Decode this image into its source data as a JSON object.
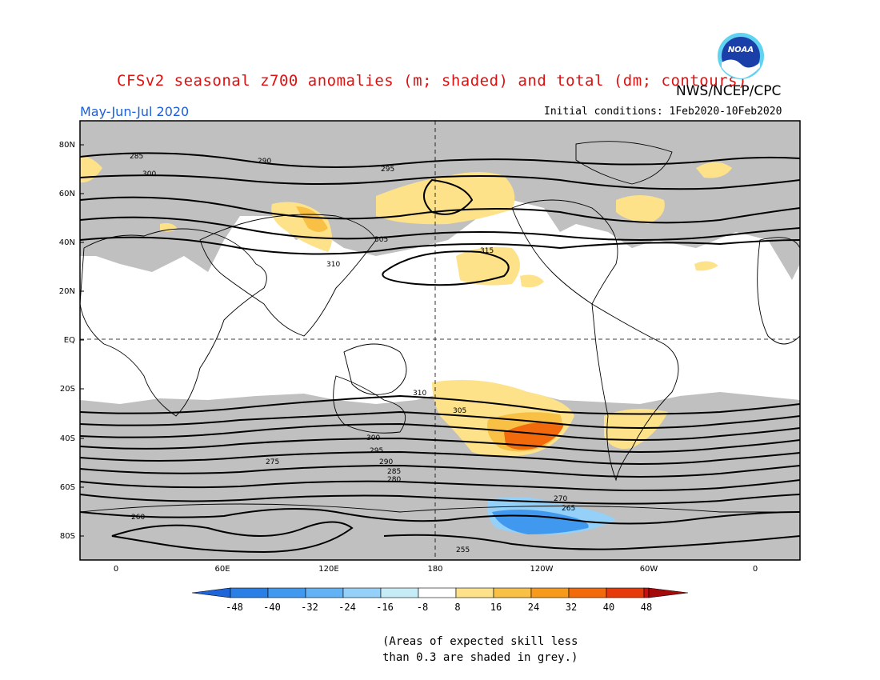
{
  "header": {
    "title": "CFSv2 seasonal z700 anomalies (m; shaded) and total (dm; contours)",
    "agency": "NWS/NCEP/CPC",
    "period": "May-Jun-Jul 2020",
    "initial_conditions": "Initial conditions: 1Feb2020-10Feb2020",
    "logo_text": "NOAA"
  },
  "map": {
    "lat_labels": [
      "80N",
      "60N",
      "40N",
      "20N",
      "EQ",
      "20S",
      "40S",
      "60S",
      "80S"
    ],
    "lon_labels": [
      "0",
      "60E",
      "120E",
      "180",
      "120W",
      "60W",
      "0"
    ],
    "contour_labels": [
      "285",
      "290",
      "295",
      "300",
      "305",
      "310",
      "315",
      "310",
      "305",
      "300",
      "295",
      "290",
      "285",
      "280",
      "275",
      "270",
      "265",
      "260",
      "255"
    ]
  },
  "colorbar": {
    "labels": [
      "-48",
      "-40",
      "-32",
      "-24",
      "-16",
      "-8",
      "8",
      "16",
      "24",
      "32",
      "40",
      "48"
    ],
    "colors": [
      "#1f64d8",
      "#2a7fe6",
      "#4199ef",
      "#63b2f5",
      "#95d0f8",
      "#c5ecf7",
      "#ffffff",
      "#fde28a",
      "#f9c046",
      "#f79a1c",
      "#f26a0c",
      "#e73a0a",
      "#c80f0f",
      "#a50a0a"
    ]
  },
  "footnote": {
    "line1": "(Areas of expected skill less",
    "line2": "than 0.3 are shaded in grey.)"
  },
  "colors": {
    "grey_skill": "#c0c0c0",
    "title": "#e01010",
    "period": "#1a5fe0"
  }
}
